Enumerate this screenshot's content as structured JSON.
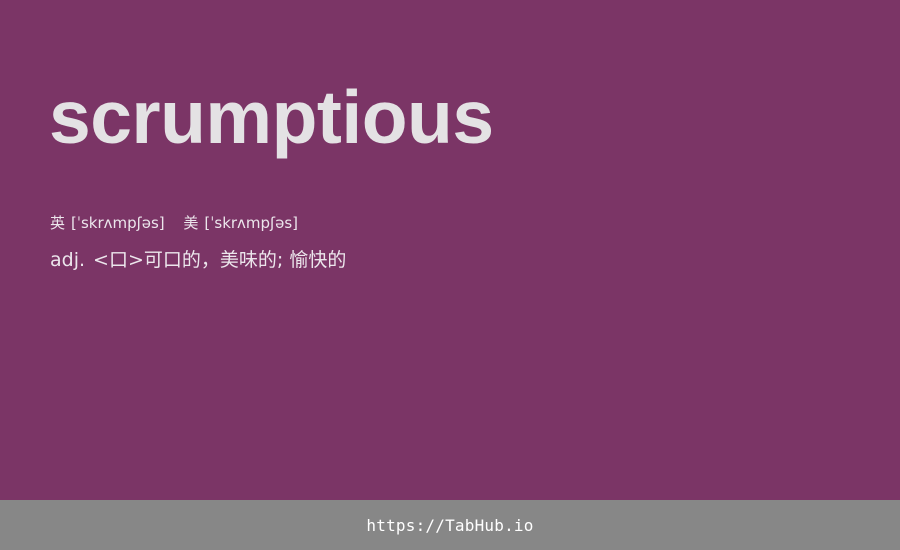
{
  "word": "scrumptious",
  "phonetics": [
    {
      "region": "英",
      "ipa": "[ˈskrʌmpʃəs]"
    },
    {
      "region": "美",
      "ipa": "[ˈskrʌmpʃəs]"
    }
  ],
  "definition": {
    "pos": "adj.",
    "meaning": "<口>可口的，美味的; 愉快的"
  },
  "footer": {
    "link": "https://TabHub.io"
  },
  "colors": {
    "background": "#7b3566",
    "footer_background": "#878787",
    "text": "#e6e2e6"
  }
}
